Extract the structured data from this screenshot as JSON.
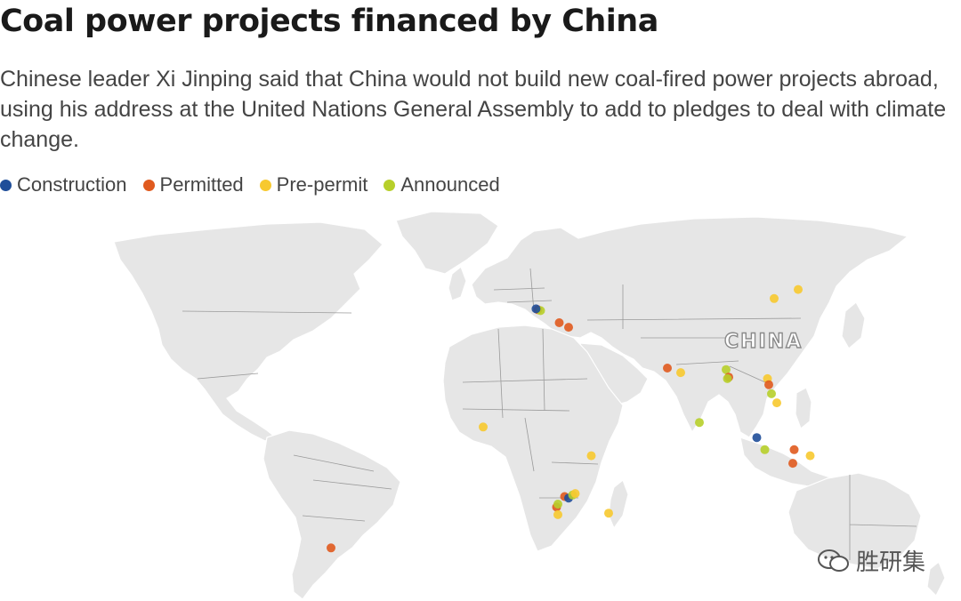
{
  "header": {
    "title": "Coal power projects financed by China",
    "subtitle": "Chinese leader Xi Jinping said that China would not build new coal-fired power projects abroad, using his address at the United Nations General Assembly to add to pledges to deal with climate change."
  },
  "legend": [
    {
      "label": "Construction",
      "color": "#1f4e99"
    },
    {
      "label": "Permitted",
      "color": "#e05a1e"
    },
    {
      "label": "Pre-permit",
      "color": "#f7c92f"
    },
    {
      "label": "Announced",
      "color": "#b7cf2a"
    }
  ],
  "map": {
    "country_label": "CHINA",
    "projects": [
      {
        "region": "Balkans",
        "lon": 19.5,
        "lat": 44.3,
        "status": "Permitted"
      },
      {
        "region": "Balkans",
        "lon": 20.5,
        "lat": 44.0,
        "status": "Announced"
      },
      {
        "region": "Balkans",
        "lon": 18.8,
        "lat": 44.6,
        "status": "Construction"
      },
      {
        "region": "Turkey",
        "lon": 27.5,
        "lat": 40.0,
        "status": "Permitted"
      },
      {
        "region": "Turkey",
        "lon": 31.0,
        "lat": 38.5,
        "status": "Permitted"
      },
      {
        "region": "Mongolia",
        "lon": 108.0,
        "lat": 48.0,
        "status": "Pre-permit"
      },
      {
        "region": "Mongolia",
        "lon": 117.0,
        "lat": 51.0,
        "status": "Pre-permit"
      },
      {
        "region": "Pakistan",
        "lon": 68.0,
        "lat": 25.0,
        "status": "Permitted"
      },
      {
        "region": "India",
        "lon": 73.0,
        "lat": 23.5,
        "status": "Pre-permit"
      },
      {
        "region": "Bangladesh",
        "lon": 90.0,
        "lat": 24.5,
        "status": "Announced"
      },
      {
        "region": "Bangladesh",
        "lon": 91.0,
        "lat": 22.0,
        "status": "Permitted"
      },
      {
        "region": "Bangladesh",
        "lon": 90.5,
        "lat": 21.5,
        "status": "Announced"
      },
      {
        "region": "Vietnam",
        "lon": 105.5,
        "lat": 21.5,
        "status": "Pre-permit"
      },
      {
        "region": "Vietnam",
        "lon": 106.0,
        "lat": 19.5,
        "status": "Permitted"
      },
      {
        "region": "Vietnam",
        "lon": 107.0,
        "lat": 16.5,
        "status": "Announced"
      },
      {
        "region": "Vietnam",
        "lon": 109.0,
        "lat": 13.5,
        "status": "Pre-permit"
      },
      {
        "region": "Sri Lanka",
        "lon": 80.0,
        "lat": 7.0,
        "status": "Announced"
      },
      {
        "region": "Sumatra",
        "lon": 101.5,
        "lat": 2.0,
        "status": "Construction"
      },
      {
        "region": "Indonesia",
        "lon": 104.5,
        "lat": -2.0,
        "status": "Announced"
      },
      {
        "region": "Kalimantan",
        "lon": 115.5,
        "lat": -2.0,
        "status": "Permitted"
      },
      {
        "region": "Sulawesi",
        "lon": 121.5,
        "lat": -4.0,
        "status": "Pre-permit"
      },
      {
        "region": "Java",
        "lon": 115.0,
        "lat": -6.5,
        "status": "Permitted"
      },
      {
        "region": "Ghana",
        "lon": -1.0,
        "lat": 5.5,
        "status": "Pre-permit"
      },
      {
        "region": "Kenya",
        "lon": 39.5,
        "lat": -4.0,
        "status": "Pre-permit"
      },
      {
        "region": "Zimbabwe",
        "lon": 29.5,
        "lat": -17.5,
        "status": "Permitted"
      },
      {
        "region": "Zimbabwe",
        "lon": 31.0,
        "lat": -18.0,
        "status": "Construction"
      },
      {
        "region": "Zimbabwe",
        "lon": 32.5,
        "lat": -17.0,
        "status": "Announced"
      },
      {
        "region": "Mozambique",
        "lon": 33.5,
        "lat": -16.5,
        "status": "Pre-permit"
      },
      {
        "region": "Botswana",
        "lon": 26.5,
        "lat": -21.0,
        "status": "Permitted"
      },
      {
        "region": "Botswana",
        "lon": 27.0,
        "lat": -20.0,
        "status": "Announced"
      },
      {
        "region": "South Africa",
        "lon": 27.0,
        "lat": -23.5,
        "status": "Pre-permit"
      },
      {
        "region": "Madagascar",
        "lon": 46.0,
        "lat": -23.0,
        "status": "Pre-permit"
      },
      {
        "region": "Argentina",
        "lon": -58.0,
        "lat": -34.5,
        "status": "Permitted"
      }
    ]
  },
  "watermark": {
    "text": "胜研集"
  }
}
